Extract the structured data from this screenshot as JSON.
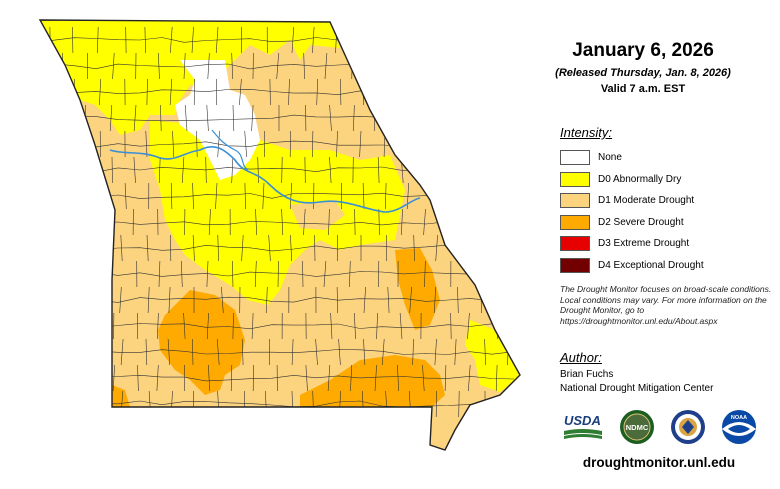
{
  "header": {
    "title": "January 6, 2026",
    "released": "(Released Thursday, Jan. 8, 2026)",
    "valid": "Valid 7 a.m. EST"
  },
  "legend": {
    "heading": "Intensity:",
    "items": [
      {
        "label": "None",
        "color": "#ffffff"
      },
      {
        "label": "D0 Abnormally Dry",
        "color": "#ffff00"
      },
      {
        "label": "D1 Moderate Drought",
        "color": "#fcd37f"
      },
      {
        "label": "D2 Severe Drought",
        "color": "#ffaa00"
      },
      {
        "label": "D3 Extreme Drought",
        "color": "#e60000"
      },
      {
        "label": "D4 Exceptional Drought",
        "color": "#730000"
      }
    ]
  },
  "note": "The Drought Monitor focuses on broad-scale conditions. Local conditions may vary. For more information on the Drought Monitor, go to https://droughtmonitor.unl.edu/About.aspx",
  "author": {
    "heading": "Author:",
    "name": "Brian Fuchs",
    "organization": "National Drought Mitigation Center"
  },
  "logos": [
    {
      "name": "usda-logo",
      "text": "USDA"
    },
    {
      "name": "ndmc-logo",
      "text": "NDMC"
    },
    {
      "name": "commerce-seal-logo"
    },
    {
      "name": "noaa-logo",
      "text": "NOAA"
    }
  ],
  "website": "droughtmonitor.unl.edu",
  "map_colors": {
    "none": "#ffffff",
    "d0": "#ffff00",
    "d1": "#fcd37f",
    "d2": "#ffaa00",
    "river": "#3a8fd6",
    "county_lines": "#333333"
  }
}
